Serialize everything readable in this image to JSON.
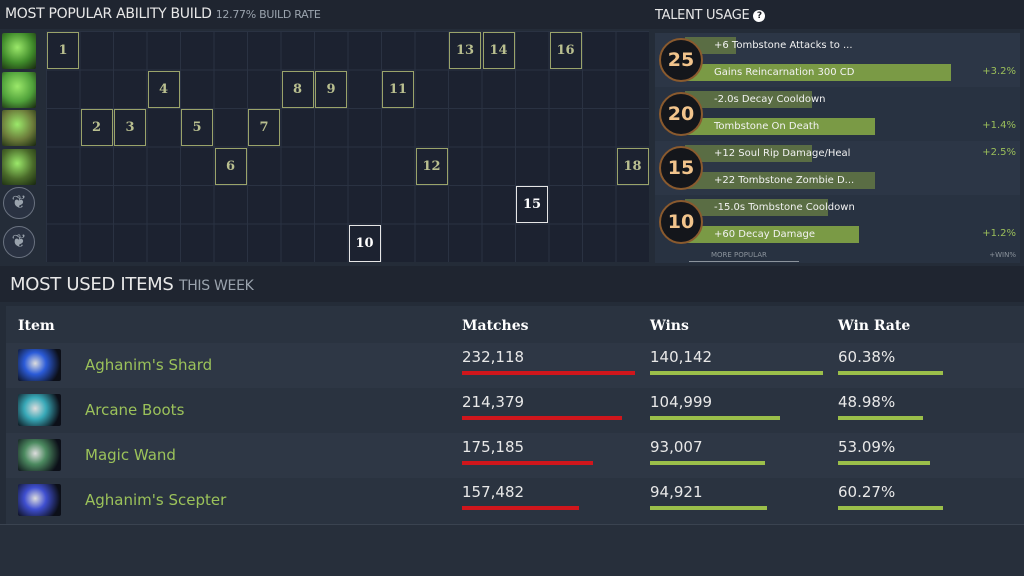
{
  "ability_build": {
    "title": "MOST POPULAR ABILITY BUILD",
    "rate": "12.77% BUILD RATE",
    "abilities": [
      "decay",
      "soul-rip",
      "tombstone",
      "flesh-golem",
      "talent",
      "talent"
    ],
    "levels": [
      {
        "l": "1",
        "row": 0,
        "col": 0
      },
      {
        "l": "2",
        "row": 2,
        "col": 1
      },
      {
        "l": "3",
        "row": 2,
        "col": 2
      },
      {
        "l": "4",
        "row": 1,
        "col": 3
      },
      {
        "l": "5",
        "row": 2,
        "col": 4
      },
      {
        "l": "6",
        "row": 3,
        "col": 5
      },
      {
        "l": "7",
        "row": 2,
        "col": 6
      },
      {
        "l": "8",
        "row": 1,
        "col": 7
      },
      {
        "l": "9",
        "row": 1,
        "col": 8
      },
      {
        "l": "10",
        "row": 5,
        "col": 9
      },
      {
        "l": "11",
        "row": 1,
        "col": 10
      },
      {
        "l": "12",
        "row": 3,
        "col": 11
      },
      {
        "l": "13",
        "row": 0,
        "col": 12
      },
      {
        "l": "14",
        "row": 0,
        "col": 13
      },
      {
        "l": "15",
        "row": 4,
        "col": 14
      },
      {
        "l": "16",
        "row": 0,
        "col": 15
      },
      {
        "l": "18",
        "row": 3,
        "col": 17
      }
    ]
  },
  "talents": {
    "title": "TALENT USAGE",
    "more_popular": "MORE POPULAR",
    "win_label": "+WIN%",
    "rows": [
      {
        "level": "25",
        "upper": "+6 Tombstone Attacks to ...",
        "upper_pct": 16,
        "lower": "Gains Reincarnation 300 CD",
        "lower_pct": 84,
        "win": "+3.2%",
        "win_side": "lower"
      },
      {
        "level": "20",
        "upper": "-2.0s Decay Cooldown",
        "upper_pct": 40,
        "lower": "Tombstone On Death",
        "lower_pct": 60,
        "win": "+1.4%",
        "win_side": "lower"
      },
      {
        "level": "15",
        "upper": "+12 Soul Rip Damage/Heal",
        "upper_pct": 40,
        "lower": "+22 Tombstone Zombie D...",
        "lower_pct": 60,
        "win": "+2.5%",
        "win_side": "upper"
      },
      {
        "level": "10",
        "upper": "-15.0s Tombstone Cooldown",
        "upper_pct": 45,
        "lower": "+60 Decay Damage",
        "lower_pct": 55,
        "win": "+1.2%",
        "win_side": "lower"
      }
    ]
  },
  "items": {
    "title": "MOST USED ITEMS",
    "subtitle": "THIS WEEK",
    "headers": [
      "Item",
      "Matches",
      "Wins",
      "Win Rate"
    ],
    "colors": {
      "matches": "#d0161c",
      "wins": "#9bbf4a",
      "winrate": "#9bbf4a"
    },
    "rows": [
      {
        "name": "Aghanim's Shard",
        "matches": "232,118",
        "m": 232118,
        "wins": "140,142",
        "w": 140142,
        "rate": "60.38%",
        "r": 60.38,
        "icon": "#2b5bd8"
      },
      {
        "name": "Arcane Boots",
        "matches": "214,379",
        "m": 214379,
        "wins": "104,999",
        "w": 104999,
        "rate": "48.98%",
        "r": 48.98,
        "icon": "#38a9b8"
      },
      {
        "name": "Magic Wand",
        "matches": "175,185",
        "m": 175185,
        "wins": "93,007",
        "w": 93007,
        "rate": "53.09%",
        "r": 53.09,
        "icon": "#4c8a60"
      },
      {
        "name": "Aghanim's Scepter",
        "matches": "157,482",
        "m": 157482,
        "wins": "94,921",
        "w": 94921,
        "rate": "60.27%",
        "r": 60.27,
        "icon": "#3f4fd0"
      }
    ]
  }
}
